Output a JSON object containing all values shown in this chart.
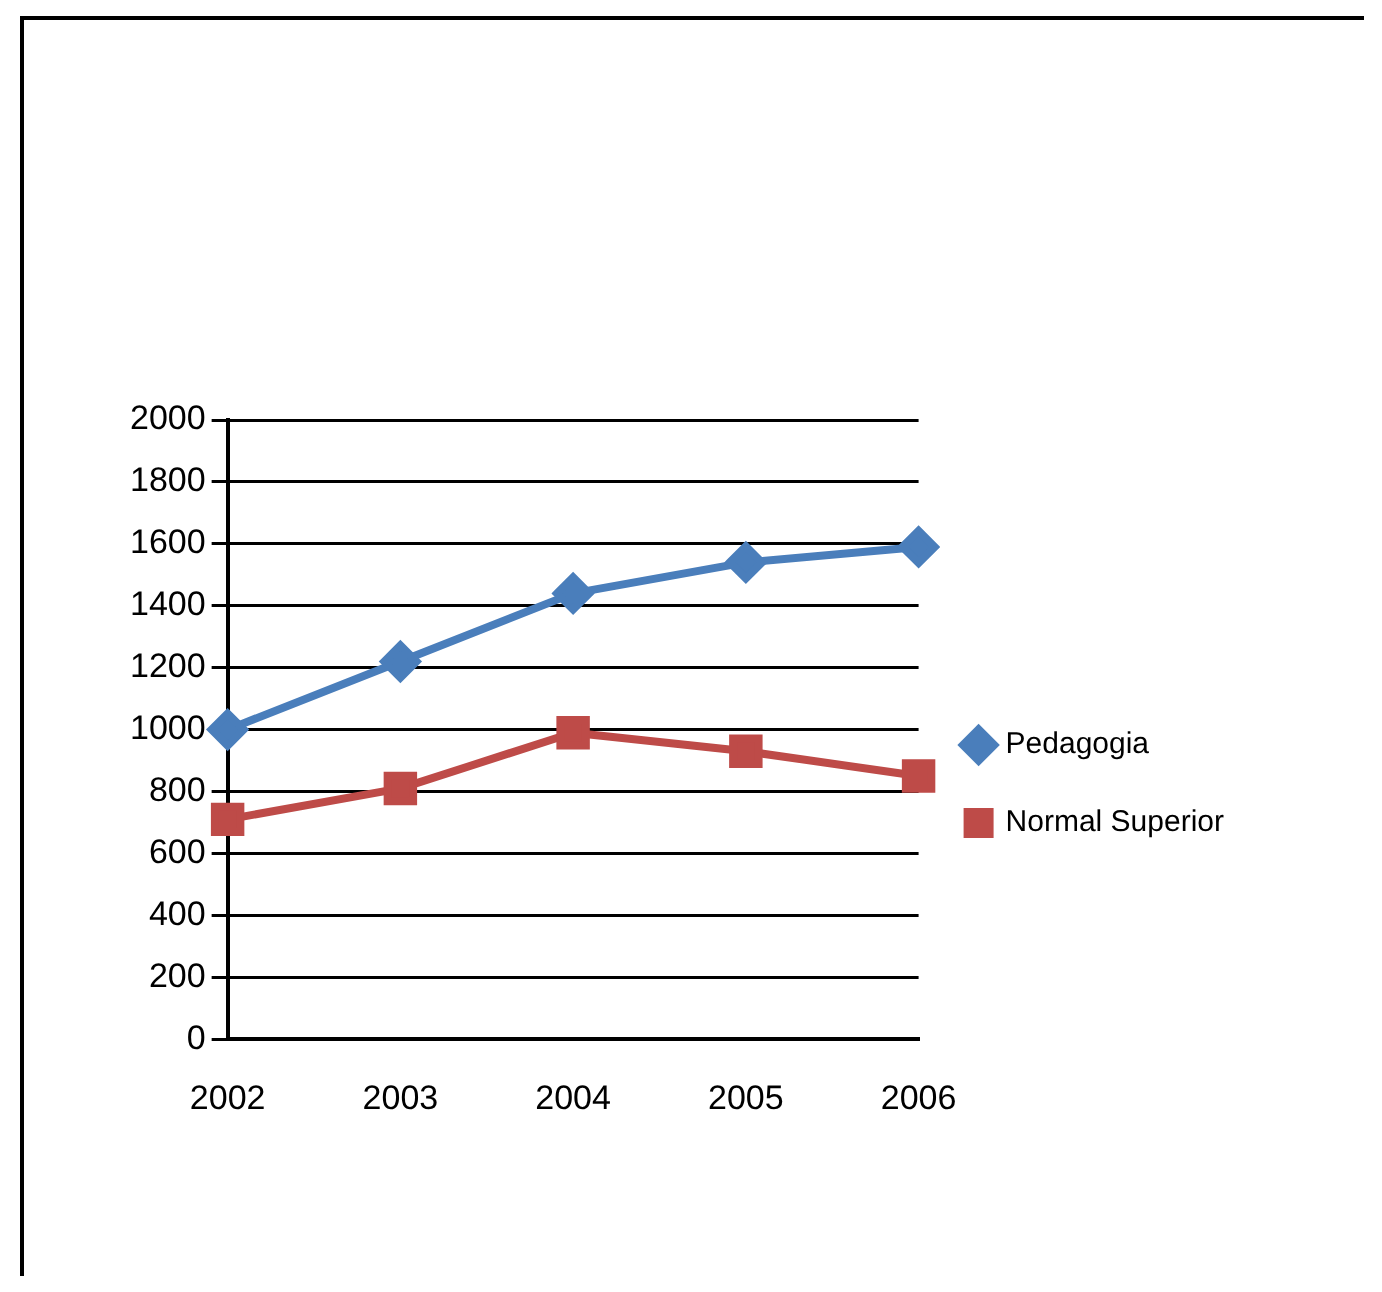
{
  "chart_data": {
    "type": "line",
    "categories": [
      "2002",
      "2003",
      "2004",
      "2005",
      "2006"
    ],
    "series": [
      {
        "name": "Pedagogia",
        "color": "#4a7ebb",
        "marker": "diamond",
        "values": [
          1000,
          1220,
          1440,
          1540,
          1590
        ]
      },
      {
        "name": "Normal Superior",
        "color": "#be4b48",
        "marker": "square",
        "values": [
          710,
          810,
          990,
          930,
          850
        ]
      }
    ],
    "ylim": [
      0,
      2000
    ],
    "yticks": [
      0,
      200,
      400,
      600,
      800,
      1000,
      1200,
      1400,
      1600,
      1800,
      2000
    ],
    "grid": "y",
    "legend": "right"
  }
}
